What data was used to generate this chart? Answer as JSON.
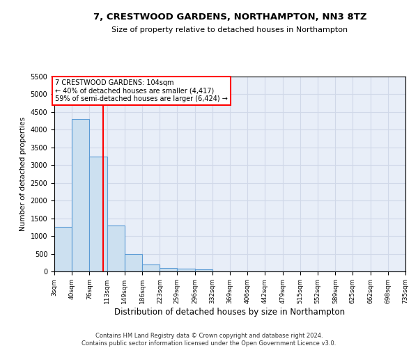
{
  "title": "7, CRESTWOOD GARDENS, NORTHAMPTON, NN3 8TZ",
  "subtitle": "Size of property relative to detached houses in Northampton",
  "xlabel": "Distribution of detached houses by size in Northampton",
  "ylabel": "Number of detached properties",
  "footer_line1": "Contains HM Land Registry data © Crown copyright and database right 2024.",
  "footer_line2": "Contains public sector information licensed under the Open Government Licence v3.0.",
  "annotation_line1": "7 CRESTWOOD GARDENS: 104sqm",
  "annotation_line2": "← 40% of detached houses are smaller (4,417)",
  "annotation_line3": "59% of semi-detached houses are larger (6,424) →",
  "property_size": 104,
  "bar_color": "#cce0f0",
  "bar_edge_color": "#5b9bd5",
  "redline_color": "red",
  "grid_color": "#d0d8e8",
  "background_color": "#e8eef8",
  "bin_edges": [
    3,
    40,
    76,
    113,
    149,
    186,
    223,
    259,
    296,
    332,
    369,
    406,
    442,
    479,
    515,
    552,
    589,
    625,
    662,
    698,
    735
  ],
  "bin_labels": [
    "3sqm",
    "40sqm",
    "76sqm",
    "113sqm",
    "149sqm",
    "186sqm",
    "223sqm",
    "259sqm",
    "296sqm",
    "332sqm",
    "369sqm",
    "406sqm",
    "442sqm",
    "479sqm",
    "515sqm",
    "552sqm",
    "589sqm",
    "625sqm",
    "662sqm",
    "698sqm",
    "735sqm"
  ],
  "bar_heights": [
    1250,
    4300,
    3250,
    1300,
    500,
    200,
    100,
    75,
    50,
    0,
    0,
    0,
    0,
    0,
    0,
    0,
    0,
    0,
    0,
    0
  ],
  "ylim": [
    0,
    5500
  ],
  "yticks": [
    0,
    500,
    1000,
    1500,
    2000,
    2500,
    3000,
    3500,
    4000,
    4500,
    5000,
    5500
  ]
}
